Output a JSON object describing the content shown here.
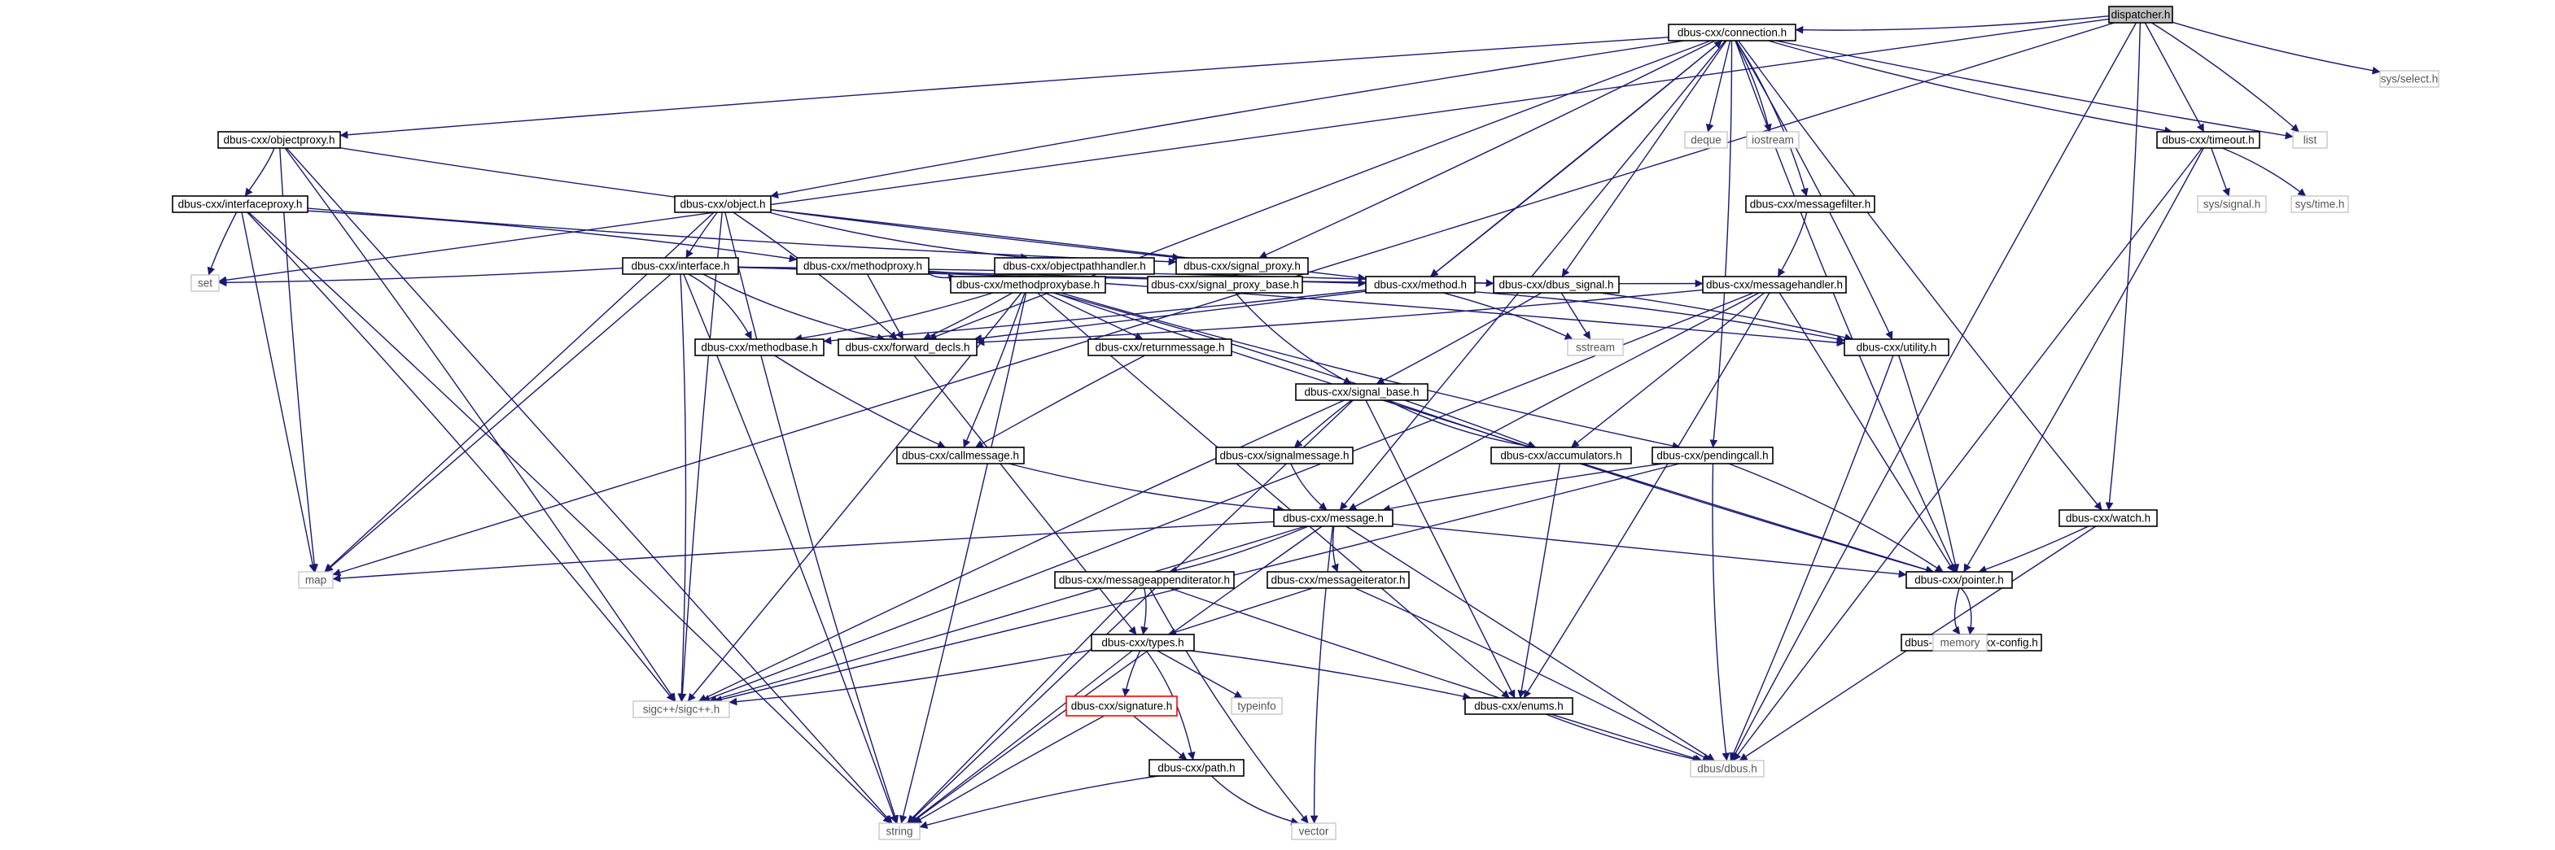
{
  "nodes": [
    {
      "id": "dispatcher",
      "label": "dispatcher.h",
      "kind": "root"
    },
    {
      "id": "sysselect",
      "label": "sys/select.h",
      "kind": "ext"
    },
    {
      "id": "connection",
      "label": "dbus-cxx/connection.h",
      "kind": "normal"
    },
    {
      "id": "objectproxy",
      "label": "dbus-cxx/objectproxy.h",
      "kind": "normal"
    },
    {
      "id": "timeout",
      "label": "dbus-cxx/timeout.h",
      "kind": "normal"
    },
    {
      "id": "list",
      "label": "list",
      "kind": "ext"
    },
    {
      "id": "deque",
      "label": "deque",
      "kind": "ext"
    },
    {
      "id": "iostream",
      "label": "iostream",
      "kind": "ext"
    },
    {
      "id": "interfaceproxy",
      "label": "dbus-cxx/interfaceproxy.h",
      "kind": "normal"
    },
    {
      "id": "object",
      "label": "dbus-cxx/object.h",
      "kind": "normal"
    },
    {
      "id": "messagefilter",
      "label": "dbus-cxx/messagefilter.h",
      "kind": "normal"
    },
    {
      "id": "syssignal",
      "label": "sys/signal.h",
      "kind": "ext"
    },
    {
      "id": "systime",
      "label": "sys/time.h",
      "kind": "ext"
    },
    {
      "id": "interface",
      "label": "dbus-cxx/interface.h",
      "kind": "normal"
    },
    {
      "id": "methodproxy",
      "label": "dbus-cxx/methodproxy.h",
      "kind": "normal"
    },
    {
      "id": "objectpathhandler",
      "label": "dbus-cxx/objectpathhandler.h",
      "kind": "normal"
    },
    {
      "id": "signal_proxy",
      "label": "dbus-cxx/signal_proxy.h",
      "kind": "normal"
    },
    {
      "id": "set",
      "label": "set",
      "kind": "ext"
    },
    {
      "id": "methodproxybase",
      "label": "dbus-cxx/methodproxybase.h",
      "kind": "normal"
    },
    {
      "id": "signal_proxy_base",
      "label": "dbus-cxx/signal_proxy_base.h",
      "kind": "normal"
    },
    {
      "id": "method",
      "label": "dbus-cxx/method.h",
      "kind": "normal"
    },
    {
      "id": "dbus_signal",
      "label": "dbus-cxx/dbus_signal.h",
      "kind": "normal"
    },
    {
      "id": "messagehandler",
      "label": "dbus-cxx/messagehandler.h",
      "kind": "normal"
    },
    {
      "id": "methodbase",
      "label": "dbus-cxx/methodbase.h",
      "kind": "normal"
    },
    {
      "id": "forward_decls",
      "label": "dbus-cxx/forward_decls.h",
      "kind": "normal"
    },
    {
      "id": "returnmessage",
      "label": "dbus-cxx/returnmessage.h",
      "kind": "normal"
    },
    {
      "id": "sstream",
      "label": "sstream",
      "kind": "ext"
    },
    {
      "id": "utility",
      "label": "dbus-cxx/utility.h",
      "kind": "normal"
    },
    {
      "id": "signal_base",
      "label": "dbus-cxx/signal_base.h",
      "kind": "normal"
    },
    {
      "id": "callmessage",
      "label": "dbus-cxx/callmessage.h",
      "kind": "normal"
    },
    {
      "id": "signalmessage",
      "label": "dbus-cxx/signalmessage.h",
      "kind": "normal"
    },
    {
      "id": "accumulators",
      "label": "dbus-cxx/accumulators.h",
      "kind": "normal"
    },
    {
      "id": "pendingcall",
      "label": "dbus-cxx/pendingcall.h",
      "kind": "normal"
    },
    {
      "id": "watch",
      "label": "dbus-cxx/watch.h",
      "kind": "normal"
    },
    {
      "id": "message",
      "label": "dbus-cxx/message.h",
      "kind": "normal"
    },
    {
      "id": "map",
      "label": "map",
      "kind": "ext"
    },
    {
      "id": "pointer",
      "label": "dbus-cxx/pointer.h",
      "kind": "normal"
    },
    {
      "id": "messageappenditerator",
      "label": "dbus-cxx/messageappenditerator.h",
      "kind": "normal"
    },
    {
      "id": "messageiterator",
      "label": "dbus-cxx/messageiterator.h",
      "kind": "normal"
    },
    {
      "id": "dbuscxxconfig",
      "label": "dbus-cxx/dbus-cxx-config.h",
      "kind": "normal"
    },
    {
      "id": "memory",
      "label": "memory",
      "kind": "ext"
    },
    {
      "id": "types",
      "label": "dbus-cxx/types.h",
      "kind": "normal"
    },
    {
      "id": "sigcpp",
      "label": "sigc++/sigc++.h",
      "kind": "ext"
    },
    {
      "id": "signature",
      "label": "dbus-cxx/signature.h",
      "kind": "red"
    },
    {
      "id": "typeinfo",
      "label": "typeinfo",
      "kind": "ext"
    },
    {
      "id": "enums",
      "label": "dbus-cxx/enums.h",
      "kind": "normal"
    },
    {
      "id": "path",
      "label": "dbus-cxx/path.h",
      "kind": "normal"
    },
    {
      "id": "dbusdbus",
      "label": "dbus/dbus.h",
      "kind": "ext"
    },
    {
      "id": "string",
      "label": "string",
      "kind": "ext"
    },
    {
      "id": "vector",
      "label": "vector",
      "kind": "ext"
    }
  ],
  "edges": [
    [
      "dispatcher",
      "connection"
    ],
    [
      "dispatcher",
      "sysselect"
    ],
    [
      "dispatcher",
      "timeout"
    ],
    [
      "dispatcher",
      "list"
    ],
    [
      "dispatcher",
      "watch"
    ],
    [
      "dispatcher",
      "dbusdbus"
    ],
    [
      "dispatcher",
      "set"
    ],
    [
      "dispatcher",
      "map"
    ],
    [
      "connection",
      "objectproxy"
    ],
    [
      "connection",
      "object"
    ],
    [
      "connection",
      "timeout"
    ],
    [
      "connection",
      "list"
    ],
    [
      "connection",
      "deque"
    ],
    [
      "connection",
      "iostream"
    ],
    [
      "connection",
      "messagefilter"
    ],
    [
      "connection",
      "signal_proxy"
    ],
    [
      "connection",
      "method"
    ],
    [
      "connection",
      "dbus_signal"
    ],
    [
      "connection",
      "utility"
    ],
    [
      "connection",
      "pendingcall"
    ],
    [
      "connection",
      "pointer"
    ],
    [
      "connection",
      "watch"
    ],
    [
      "connection",
      "message"
    ],
    [
      "connection",
      "forward_decls"
    ],
    [
      "objectproxy",
      "interfaceproxy"
    ],
    [
      "objectproxy",
      "signal_proxy"
    ],
    [
      "objectproxy",
      "map"
    ],
    [
      "objectproxy",
      "string"
    ],
    [
      "objectproxy",
      "sigcpp"
    ],
    [
      "interfaceproxy",
      "methodproxy"
    ],
    [
      "interfaceproxy",
      "signal_proxy"
    ],
    [
      "interfaceproxy",
      "set"
    ],
    [
      "interfaceproxy",
      "map"
    ],
    [
      "interfaceproxy",
      "string"
    ],
    [
      "interfaceproxy",
      "sigcpp"
    ],
    [
      "object",
      "objectpathhandler"
    ],
    [
      "object",
      "interface"
    ],
    [
      "object",
      "method"
    ],
    [
      "object",
      "forward_decls"
    ],
    [
      "object",
      "map"
    ],
    [
      "object",
      "string"
    ],
    [
      "object",
      "sigcpp"
    ],
    [
      "interface",
      "method"
    ],
    [
      "interface",
      "dbus_signal"
    ],
    [
      "interface",
      "methodbase"
    ],
    [
      "interface",
      "forward_decls"
    ],
    [
      "interface",
      "set"
    ],
    [
      "interface",
      "map"
    ],
    [
      "interface",
      "string"
    ],
    [
      "interface",
      "sigcpp"
    ],
    [
      "interface",
      "messagehandler"
    ],
    [
      "methodproxy",
      "methodproxybase"
    ],
    [
      "methodproxy",
      "forward_decls"
    ],
    [
      "methodproxy",
      "utility"
    ],
    [
      "signal_proxy",
      "signal_proxy_base"
    ],
    [
      "signal_proxy_base",
      "signal_base"
    ],
    [
      "methodproxybase",
      "forward_decls"
    ],
    [
      "methodproxybase",
      "returnmessage"
    ],
    [
      "methodproxybase",
      "callmessage"
    ],
    [
      "methodproxybase",
      "accumulators"
    ],
    [
      "methodproxybase",
      "pendingcall"
    ],
    [
      "methodproxybase",
      "pointer"
    ],
    [
      "methodproxybase",
      "enums"
    ],
    [
      "methodproxybase",
      "string"
    ],
    [
      "methodproxybase",
      "sigcpp"
    ],
    [
      "methodproxybase",
      "methodbase"
    ],
    [
      "method",
      "methodbase"
    ],
    [
      "method",
      "forward_decls"
    ],
    [
      "method",
      "sstream"
    ],
    [
      "method",
      "utility"
    ],
    [
      "method",
      "connection"
    ],
    [
      "dbus_signal",
      "signal_base"
    ],
    [
      "dbus_signal",
      "sstream"
    ],
    [
      "dbus_signal",
      "utility"
    ],
    [
      "messagefilter",
      "messagehandler"
    ],
    [
      "messagehandler",
      "forward_decls"
    ],
    [
      "messagehandler",
      "accumulators"
    ],
    [
      "messagehandler",
      "pointer"
    ],
    [
      "messagehandler",
      "message"
    ],
    [
      "messagehandler",
      "enums"
    ],
    [
      "messagehandler",
      "sigcpp"
    ],
    [
      "methodbase",
      "callmessage"
    ],
    [
      "forward_decls",
      "types"
    ],
    [
      "returnmessage",
      "callmessage"
    ],
    [
      "signal_base",
      "signalmessage"
    ],
    [
      "signal_base",
      "accumulators"
    ],
    [
      "signal_base",
      "pointer"
    ],
    [
      "signal_base",
      "enums"
    ],
    [
      "signal_base",
      "string"
    ],
    [
      "signal_base",
      "sigcpp"
    ],
    [
      "callmessage",
      "message"
    ],
    [
      "signalmessage",
      "message"
    ],
    [
      "accumulators",
      "enums"
    ],
    [
      "pendingcall",
      "message"
    ],
    [
      "pendingcall",
      "pointer"
    ],
    [
      "pendingcall",
      "dbusdbus"
    ],
    [
      "pendingcall",
      "sigcpp"
    ],
    [
      "timeout",
      "syssignal"
    ],
    [
      "timeout",
      "systime"
    ],
    [
      "timeout",
      "pointer"
    ],
    [
      "timeout",
      "dbusdbus"
    ],
    [
      "watch",
      "pointer"
    ],
    [
      "watch",
      "dbusdbus"
    ],
    [
      "utility",
      "pointer"
    ],
    [
      "utility",
      "dbusdbus"
    ],
    [
      "message",
      "messageappenditerator"
    ],
    [
      "message",
      "messageiterator"
    ],
    [
      "message",
      "pointer"
    ],
    [
      "message",
      "map"
    ],
    [
      "message",
      "string"
    ],
    [
      "message",
      "vector"
    ],
    [
      "message",
      "sigcpp"
    ],
    [
      "message",
      "dbusdbus"
    ],
    [
      "messageappenditerator",
      "types"
    ],
    [
      "messageappenditerator",
      "string"
    ],
    [
      "messageappenditerator",
      "vector"
    ],
    [
      "messageappenditerator",
      "dbusdbus"
    ],
    [
      "messageiterator",
      "types"
    ],
    [
      "messageiterator",
      "dbusdbus"
    ],
    [
      "pointer",
      "dbuscxxconfig"
    ],
    [
      "pointer",
      "memory"
    ],
    [
      "types",
      "signature"
    ],
    [
      "types",
      "typeinfo"
    ],
    [
      "types",
      "enums"
    ],
    [
      "types",
      "path"
    ],
    [
      "types",
      "sigcpp"
    ],
    [
      "types",
      "string"
    ],
    [
      "signature",
      "path"
    ],
    [
      "signature",
      "string"
    ],
    [
      "path",
      "string"
    ],
    [
      "path",
      "vector"
    ],
    [
      "enums",
      "dbusdbus"
    ]
  ]
}
